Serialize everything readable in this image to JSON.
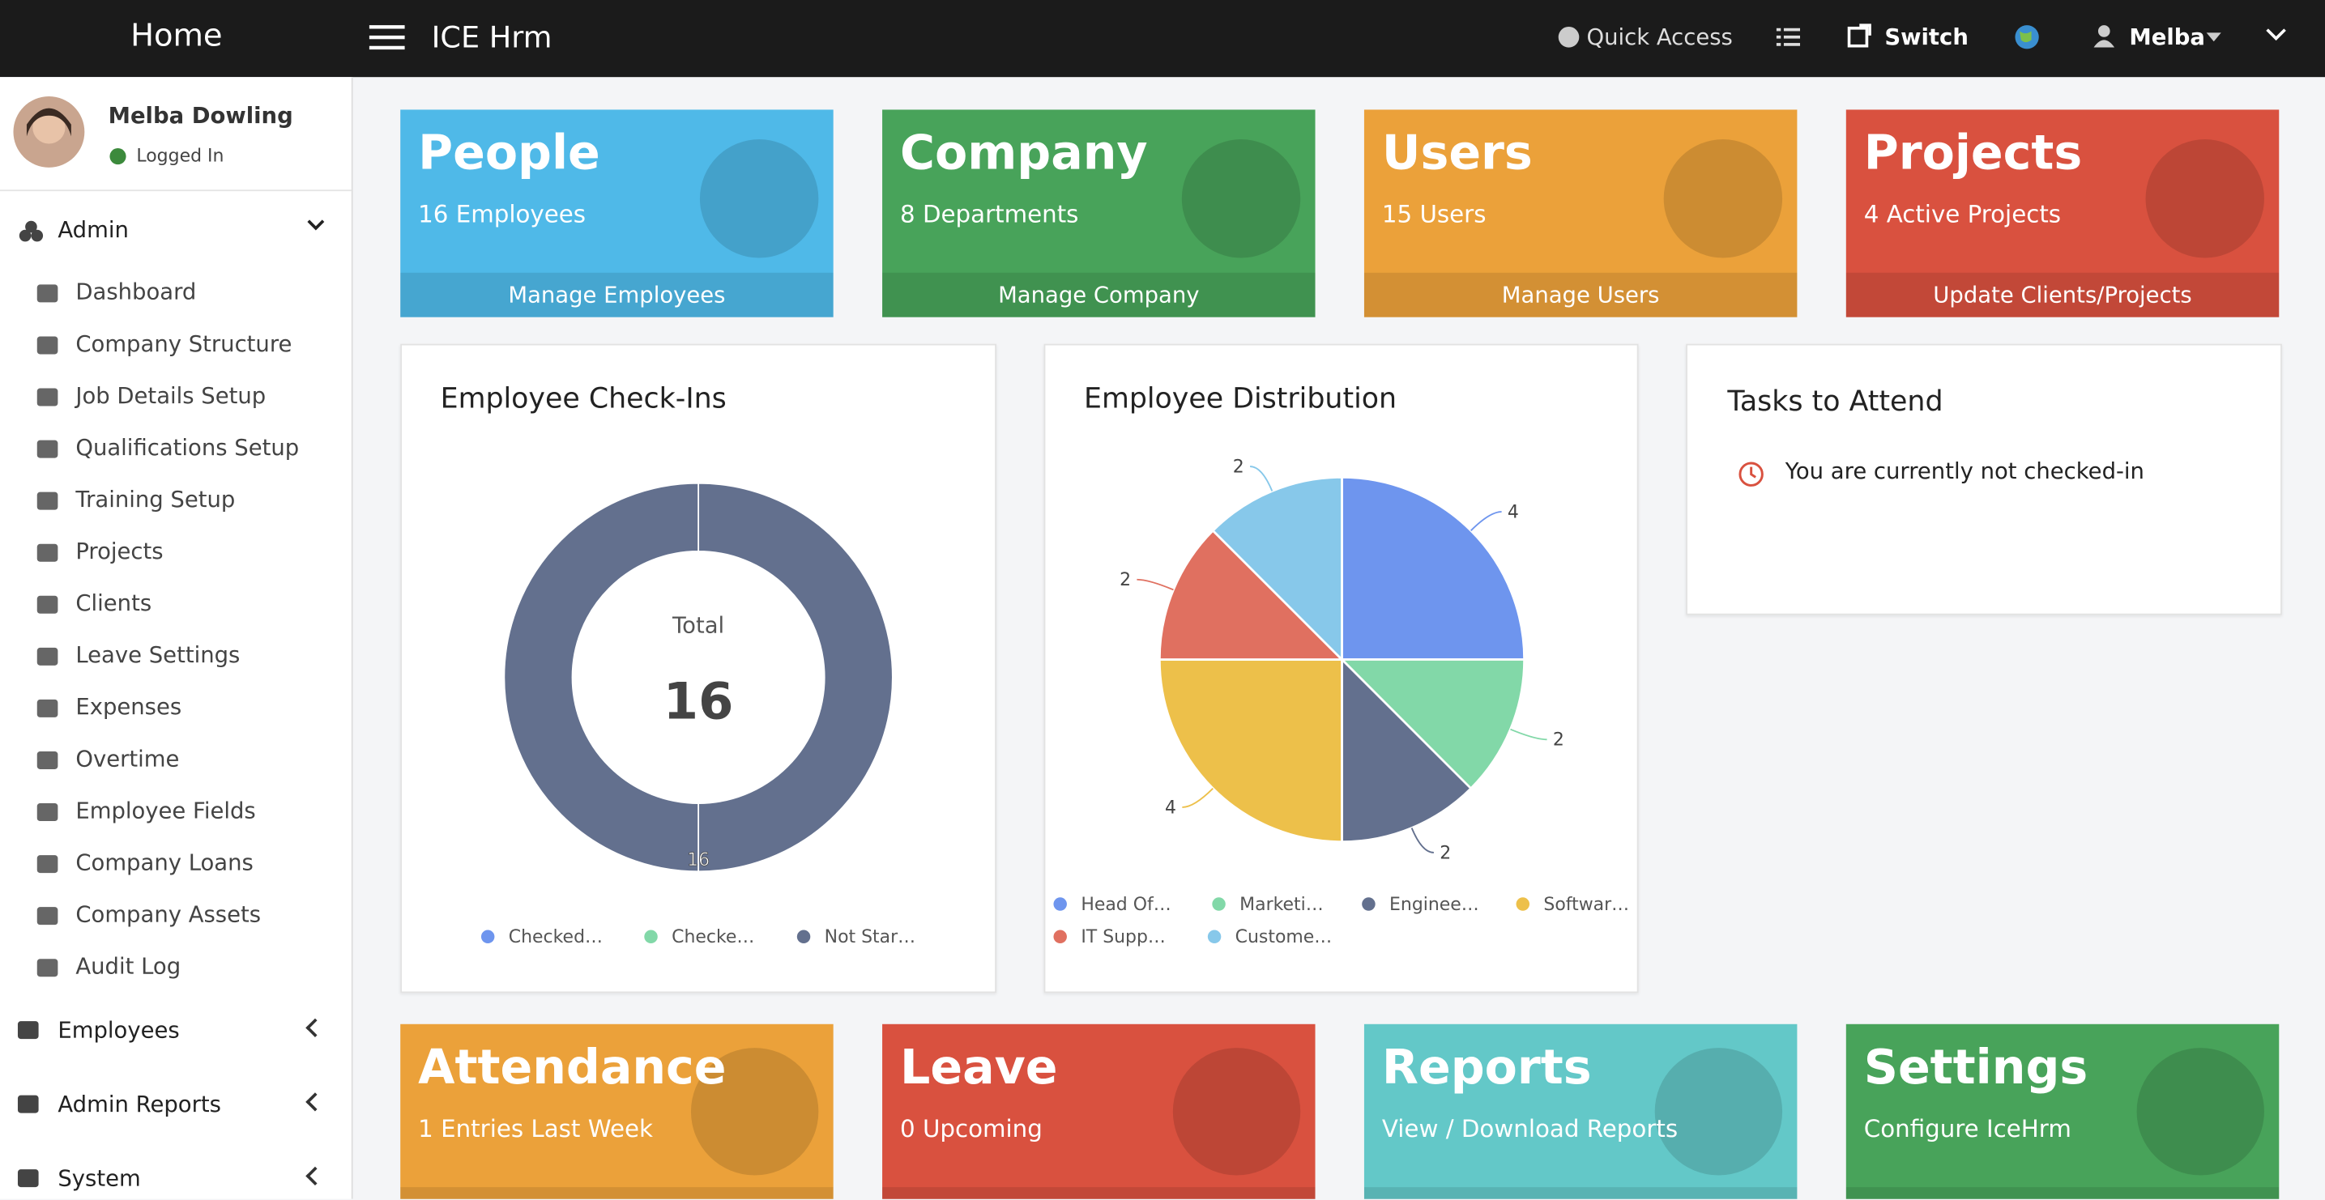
{
  "topbar": {
    "brand": "Home",
    "app": "ICE Hrm",
    "quick_access": "Quick Access",
    "switch": "Switch",
    "user": "Melba"
  },
  "sidebar": {
    "user_name": "Melba Dowling",
    "status": "Logged In",
    "admin": "Admin",
    "items": [
      "Dashboard",
      "Company Structure",
      "Job Details Setup",
      "Qualifications Setup",
      "Training Setup",
      "Projects",
      "Clients",
      "Leave Settings",
      "Expenses",
      "Overtime",
      "Employee Fields",
      "Company Loans",
      "Company Assets",
      "Audit Log"
    ],
    "sections": [
      "Employees",
      "Admin Reports",
      "System"
    ]
  },
  "tiles": [
    {
      "title": "People",
      "subtitle": "16 Employees",
      "link": "Manage Employees",
      "color": "#4fb9e8"
    },
    {
      "title": "Company",
      "subtitle": "8 Departments",
      "link": "Manage Company",
      "color": "#48a35a"
    },
    {
      "title": "Users",
      "subtitle": "15 Users",
      "link": "Manage Users",
      "color": "#eba13a"
    },
    {
      "title": "Projects",
      "subtitle": "4 Active Projects",
      "link": "Update Clients/Projects",
      "color": "#d9513f"
    }
  ],
  "bottom_tiles": [
    {
      "title": "Attendance",
      "subtitle": "1 Entries Last Week",
      "color": "#eba13a"
    },
    {
      "title": "Leave",
      "subtitle": "0 Upcoming",
      "color": "#d9513f"
    },
    {
      "title": "Reports",
      "subtitle": "View / Download Reports",
      "color": "#63c8c8"
    },
    {
      "title": "Settings",
      "subtitle": "Configure IceHrm",
      "color": "#48a35a"
    }
  ],
  "chart_data": [
    {
      "type": "donut",
      "title": "Employee Check-Ins",
      "center_label": "Total",
      "total": 16,
      "categories": [
        "Checked…",
        "Checke…",
        "Not Star…"
      ],
      "values": [
        0,
        0,
        16
      ],
      "colors": [
        "#6e95ee",
        "#82d8a8",
        "#63708e"
      ]
    },
    {
      "type": "pie",
      "title": "Employee Distribution",
      "categories": [
        "Head Of…",
        "Marketi…",
        "Enginee…",
        "Softwar…",
        "IT Supp…",
        "Custome…"
      ],
      "values": [
        4,
        2,
        2,
        4,
        2,
        2
      ],
      "colors": [
        "#6e95ee",
        "#82d8a8",
        "#63708e",
        "#edc04a",
        "#e07060",
        "#87c8ea"
      ]
    }
  ],
  "tasks": {
    "title": "Tasks to Attend",
    "message": "You are currently not checked-in"
  }
}
